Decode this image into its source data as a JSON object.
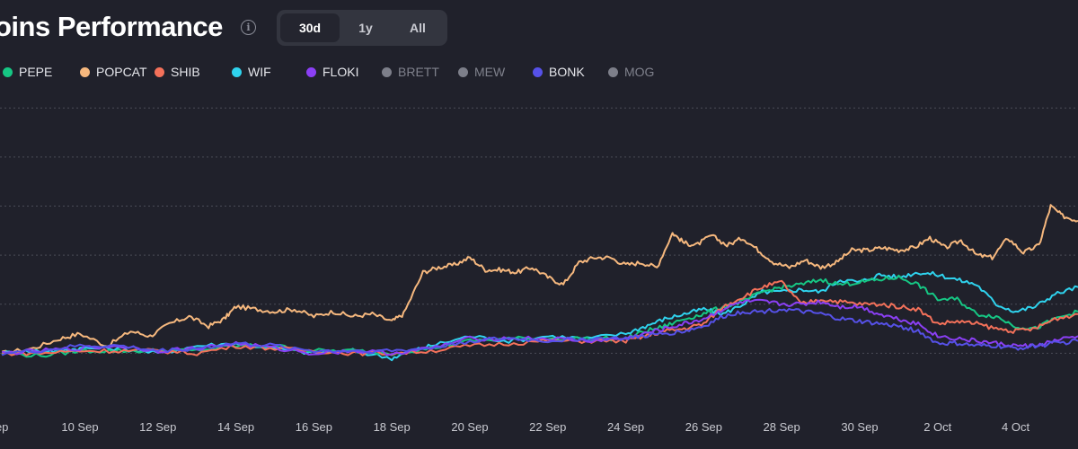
{
  "header": {
    "title": "oins Performance",
    "info_icon": "info-icon",
    "ranges": [
      {
        "label": "30d",
        "active": true
      },
      {
        "label": "1y",
        "active": false
      },
      {
        "label": "All",
        "active": false
      }
    ]
  },
  "legend": [
    {
      "label": "PEPE",
      "color": "#16c784",
      "active": true
    },
    {
      "label": "POPCAT",
      "color": "#f6b87e",
      "active": true
    },
    {
      "label": "SHIB",
      "color": "#f4715a",
      "active": true
    },
    {
      "label": "WIF",
      "color": "#2fd3ee",
      "active": true
    },
    {
      "label": "FLOKI",
      "color": "#8b3ff5",
      "active": true
    },
    {
      "label": "BRETT",
      "color": "#7d7f8a",
      "active": false
    },
    {
      "label": "MEW",
      "color": "#7d7f8a",
      "active": false
    },
    {
      "label": "BONK",
      "color": "#5651e8",
      "active": true
    },
    {
      "label": "MOG",
      "color": "#7d7f8a",
      "active": false
    }
  ],
  "chart_data": {
    "type": "line",
    "x_tick_labels": [
      "ep",
      "10 Sep",
      "12 Sep",
      "14 Sep",
      "16 Sep",
      "18 Sep",
      "20 Sep",
      "22 Sep",
      "24 Sep",
      "26 Sep",
      "28 Sep",
      "30 Sep",
      "2 Oct",
      "4 Oct"
    ],
    "x_tick_days": [
      0,
      2,
      4,
      6,
      8,
      10,
      12,
      14,
      16,
      18,
      20,
      22,
      24,
      26
    ],
    "x_range": [
      -0.05,
      27.6
    ],
    "y_range": [
      -1,
      5.15
    ],
    "y_gridlines": [
      0,
      1,
      2,
      3,
      4,
      5
    ],
    "grid": "horizontal dotted",
    "series": [
      {
        "name": "POPCAT",
        "color": "#f6b87e",
        "x": [
          0,
          0.8,
          1.5,
          2,
          2.7,
          3.3,
          3.8,
          4.3,
          4.8,
          5.3,
          5.7,
          6,
          6.5,
          7,
          7.5,
          8,
          8.5,
          9,
          9.5,
          10,
          10.3,
          10.8,
          11.2,
          11.6,
          12,
          12.4,
          12.8,
          13.2,
          13.6,
          14,
          14.4,
          14.8,
          15.2,
          15.6,
          16,
          16.4,
          16.8,
          17.2,
          17.5,
          17.8,
          18.2,
          18.6,
          19,
          19.4,
          19.8,
          20.2,
          20.6,
          21,
          21.4,
          21.8,
          22.2,
          22.6,
          23,
          23.4,
          23.8,
          24.2,
          24.6,
          25,
          25.4,
          25.8,
          26.2,
          26.6,
          26.9,
          27.2,
          27.6
        ],
        "y": [
          0,
          0.1,
          0.3,
          0.4,
          0.15,
          0.45,
          0.35,
          0.6,
          0.75,
          0.55,
          0.7,
          0.95,
          0.9,
          0.85,
          0.9,
          0.75,
          0.85,
          0.75,
          0.8,
          0.65,
          0.8,
          1.65,
          1.75,
          1.8,
          1.95,
          1.7,
          1.7,
          1.65,
          1.75,
          1.55,
          1.4,
          1.85,
          1.95,
          1.95,
          1.8,
          1.85,
          1.75,
          2.45,
          2.25,
          2.2,
          2.4,
          2.2,
          2.35,
          2.1,
          1.85,
          1.75,
          1.9,
          1.75,
          1.85,
          2.1,
          2.1,
          2.15,
          2.1,
          2.15,
          2.35,
          2.15,
          2.3,
          2.0,
          1.95,
          2.35,
          2.05,
          2.2,
          3.0,
          2.8,
          2.7
        ]
      },
      {
        "name": "WIF",
        "color": "#2fd3ee",
        "x": [
          0,
          0.8,
          1.5,
          2,
          3,
          4,
          5,
          6,
          7,
          8,
          9,
          10,
          10.5,
          11,
          12,
          13,
          14,
          15,
          16,
          16.5,
          17,
          17.5,
          18,
          18.5,
          19,
          19.5,
          20,
          20.5,
          21,
          21.5,
          22,
          22.5,
          23,
          23.5,
          24,
          24.5,
          25,
          25.5,
          26,
          26.5,
          27,
          27.6
        ],
        "y": [
          0,
          0.05,
          0.05,
          0.1,
          0.1,
          0,
          0.15,
          0.2,
          0.1,
          0,
          0.05,
          -0.1,
          0.05,
          0.15,
          0.35,
          0.25,
          0.35,
          0.3,
          0.4,
          0.55,
          0.7,
          0.8,
          0.9,
          0.8,
          1.0,
          1.25,
          1.25,
          1.3,
          1.25,
          1.5,
          1.45,
          1.6,
          1.55,
          1.65,
          1.6,
          1.5,
          1.4,
          1.0,
          0.85,
          0.95,
          1.2,
          1.35
        ]
      },
      {
        "name": "PEPE",
        "color": "#16c784",
        "x": [
          0,
          1,
          2,
          3,
          4,
          5,
          6,
          7,
          8,
          9,
          10,
          11,
          12,
          13,
          14,
          15,
          16,
          16.5,
          17,
          17.5,
          18,
          18.5,
          19,
          19.5,
          20,
          20.5,
          21,
          21.5,
          22,
          22.5,
          23,
          23.5,
          24,
          24.5,
          25,
          25.5,
          26,
          26.5,
          27,
          27.6
        ],
        "y": [
          0,
          -0.05,
          0.05,
          0.05,
          0.05,
          0.05,
          0.15,
          0.15,
          0.05,
          0.05,
          0.0,
          0.1,
          0.25,
          0.3,
          0.3,
          0.3,
          0.3,
          0.45,
          0.55,
          0.7,
          0.8,
          0.95,
          1.05,
          1.25,
          1.35,
          1.4,
          1.5,
          1.4,
          1.45,
          1.5,
          1.55,
          1.4,
          1.1,
          1.1,
          0.8,
          0.75,
          0.55,
          0.5,
          0.7,
          0.85
        ]
      },
      {
        "name": "SHIB",
        "color": "#f4715a",
        "x": [
          0,
          1,
          2,
          3,
          4,
          5,
          6,
          7,
          8,
          9,
          10,
          11,
          12,
          13,
          14,
          15,
          16,
          16.5,
          17,
          17.5,
          18,
          18.5,
          19,
          19.5,
          20,
          20.5,
          21,
          21.5,
          22,
          22.5,
          23,
          23.5,
          24,
          24.5,
          25,
          25.5,
          26,
          26.5,
          27,
          27.6
        ],
        "y": [
          0,
          0,
          0.05,
          0.05,
          0.05,
          0.0,
          0.15,
          0.1,
          0.05,
          0.0,
          0.0,
          0.05,
          0.15,
          0.2,
          0.25,
          0.25,
          0.25,
          0.35,
          0.45,
          0.5,
          0.6,
          0.95,
          1.15,
          1.35,
          1.45,
          1.0,
          1.1,
          1.05,
          1.0,
          1.0,
          0.95,
          0.9,
          0.6,
          0.65,
          0.6,
          0.5,
          0.45,
          0.5,
          0.7,
          0.8
        ]
      },
      {
        "name": "FLOKI",
        "color": "#8b3ff5",
        "x": [
          0,
          1,
          2,
          3,
          4,
          5,
          6,
          7,
          8,
          9,
          10,
          11,
          12,
          13,
          14,
          15,
          16,
          16.5,
          17,
          17.5,
          18,
          18.5,
          19,
          19.5,
          20,
          20.5,
          21,
          21.5,
          22,
          22.5,
          23,
          23.5,
          24,
          24.5,
          25,
          25.5,
          26,
          26.5,
          27,
          27.6
        ],
        "y": [
          0,
          0.05,
          0.1,
          0.15,
          0.05,
          0.1,
          0.2,
          0.1,
          0.0,
          0.05,
          0.0,
          0.1,
          0.3,
          0.3,
          0.3,
          0.25,
          0.3,
          0.4,
          0.5,
          0.6,
          0.7,
          0.9,
          1.05,
          1.05,
          1.0,
          1.0,
          1.05,
          0.95,
          0.95,
          0.8,
          0.7,
          0.6,
          0.35,
          0.3,
          0.25,
          0.2,
          0.15,
          0.15,
          0.25,
          0.35
        ]
      },
      {
        "name": "BONK",
        "color": "#5651e8",
        "x": [
          0,
          1,
          2,
          3,
          4,
          5,
          6,
          7,
          8,
          9,
          10,
          11,
          12,
          13,
          14,
          15,
          16,
          16.5,
          17,
          17.5,
          18,
          18.5,
          19,
          19.5,
          20,
          20.5,
          21,
          21.5,
          22,
          22.5,
          23,
          23.5,
          24,
          24.5,
          25,
          25.5,
          26,
          26.5,
          27,
          27.6
        ],
        "y": [
          0,
          0.05,
          0.15,
          0.15,
          0.05,
          0.1,
          0.2,
          0.15,
          0.05,
          0.05,
          0.05,
          0.1,
          0.25,
          0.3,
          0.25,
          0.3,
          0.3,
          0.35,
          0.4,
          0.45,
          0.55,
          0.75,
          0.85,
          0.85,
          0.9,
          0.85,
          0.8,
          0.7,
          0.65,
          0.6,
          0.55,
          0.45,
          0.2,
          0.2,
          0.15,
          0.15,
          0.1,
          0.15,
          0.2,
          0.25
        ]
      }
    ]
  }
}
